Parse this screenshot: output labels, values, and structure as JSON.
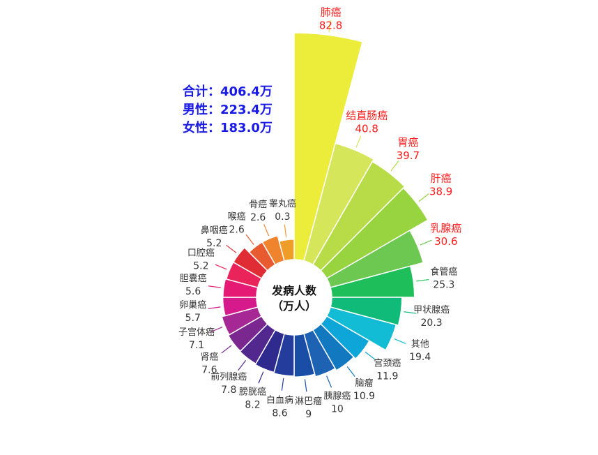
{
  "chart_data": {
    "type": "polar-bar",
    "center_label": [
      "发病人数",
      "（万人）"
    ],
    "summary": [
      {
        "label": "合计：",
        "value": "406.4万"
      },
      {
        "label": "男性：",
        "value": "223.4万"
      },
      {
        "label": "女性：",
        "value": "183.0万"
      }
    ],
    "categories": [
      "肺癌",
      "结直肠癌",
      "胃癌",
      "肝癌",
      "乳腺癌",
      "食管癌",
      "甲状腺癌",
      "其他",
      "宫颈癌",
      "脑瘤",
      "胰腺癌",
      "淋巴瘤",
      "白血病",
      "膀胱癌",
      "前列腺癌",
      "肾癌",
      "子宫体癌",
      "卵巢癌",
      "胆囊癌",
      "口腔癌",
      "鼻咽癌",
      "喉癌",
      "骨癌",
      "睾丸癌"
    ],
    "values": [
      82.8,
      40.8,
      39.7,
      38.9,
      30.6,
      25.3,
      20.3,
      19.4,
      11.9,
      10.9,
      10.0,
      9.0,
      8.6,
      8.2,
      7.8,
      7.6,
      7.1,
      5.7,
      5.6,
      5.2,
      5.2,
      2.6,
      2.6,
      0.3
    ],
    "highlighted": [
      "肺癌",
      "结直肠癌",
      "胃癌",
      "肝癌",
      "乳腺癌"
    ],
    "colors": [
      "#ecec3a",
      "#d6e65a",
      "#b8dc48",
      "#98d440",
      "#6cc850",
      "#1ebe5a",
      "#10ba78",
      "#12bcd4",
      "#0ea6d8",
      "#1278c0",
      "#1e62b4",
      "#1a4ea6",
      "#243c9c",
      "#2e2a8e",
      "#52288e",
      "#7a2890",
      "#a62894",
      "#d61a8c",
      "#e41a74",
      "#e8245a",
      "#e02c34",
      "#e85a30",
      "#f0842e",
      "#f09c28"
    ],
    "highlight_color": "#ff1a1a",
    "label_color": "#333333"
  }
}
